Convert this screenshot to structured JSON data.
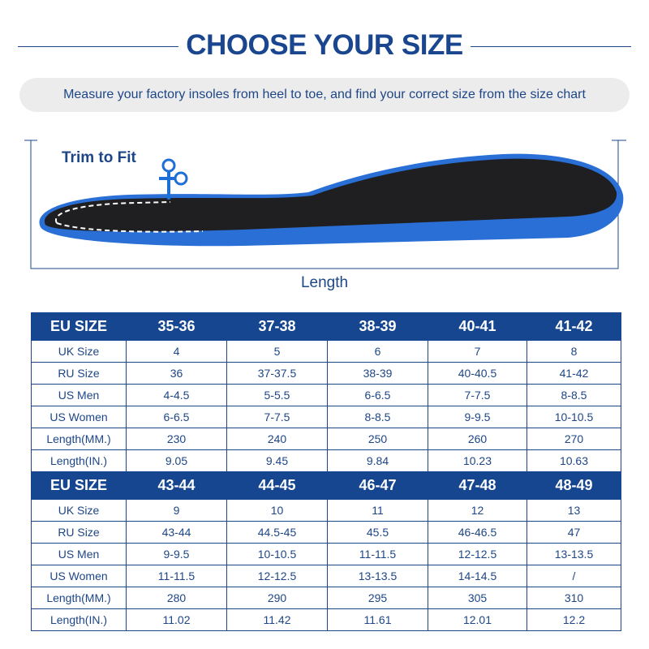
{
  "title": "CHOOSE YOUR SIZE",
  "subtitle": "Measure your factory insoles from heel to toe, and find your correct size from the size chart",
  "trim_label": "Trim to Fit",
  "length_label": "Length",
  "colors": {
    "navy": "#16468f",
    "text": "#1d4687",
    "foam_blue": "#2a6fd6",
    "insole_black": "#1f1f22"
  },
  "icons": [
    "scissors-icon"
  ],
  "tables": [
    {
      "header": [
        "EU SIZE",
        "35-36",
        "37-38",
        "38-39",
        "40-41",
        "41-42"
      ],
      "rows": [
        [
          "UK Size",
          "4",
          "5",
          "6",
          "7",
          "8"
        ],
        [
          "RU Size",
          "36",
          "37-37.5",
          "38-39",
          "40-40.5",
          "41-42"
        ],
        [
          "US Men",
          "4-4.5",
          "5-5.5",
          "6-6.5",
          "7-7.5",
          "8-8.5"
        ],
        [
          "US Women",
          "6-6.5",
          "7-7.5",
          "8-8.5",
          "9-9.5",
          "10-10.5"
        ],
        [
          "Length(MM.)",
          "230",
          "240",
          "250",
          "260",
          "270"
        ],
        [
          "Length(IN.)",
          "9.05",
          "9.45",
          "9.84",
          "10.23",
          "10.63"
        ]
      ]
    },
    {
      "header": [
        "EU SIZE",
        "43-44",
        "44-45",
        "46-47",
        "47-48",
        "48-49"
      ],
      "rows": [
        [
          "UK Size",
          "9",
          "10",
          "11",
          "12",
          "13"
        ],
        [
          "RU Size",
          "43-44",
          "44.5-45",
          "45.5",
          "46-46.5",
          "47"
        ],
        [
          "US Men",
          "9-9.5",
          "10-10.5",
          "11-11.5",
          "12-12.5",
          "13-13.5"
        ],
        [
          "US Women",
          "11-11.5",
          "12-12.5",
          "13-13.5",
          "14-14.5",
          "/"
        ],
        [
          "Length(MM.)",
          "280",
          "290",
          "295",
          "305",
          "310"
        ],
        [
          "Length(IN.)",
          "11.02",
          "11.42",
          "11.61",
          "12.01",
          "12.2"
        ]
      ]
    }
  ]
}
